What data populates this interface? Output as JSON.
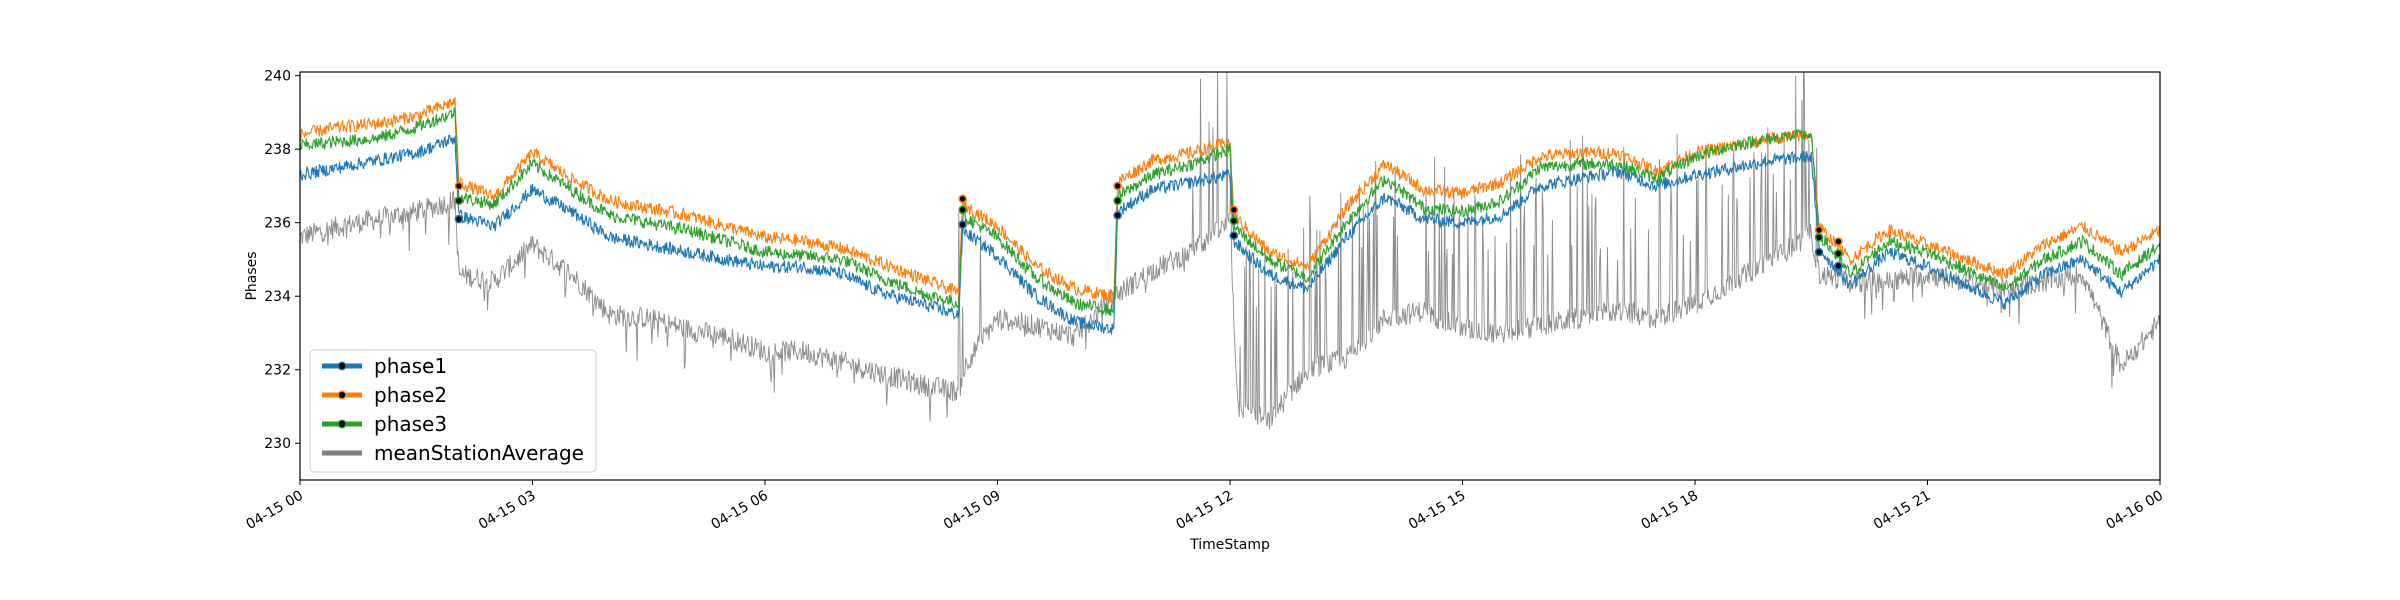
{
  "chart_data": {
    "type": "line",
    "title": "",
    "xlabel": "TimeStamp",
    "ylabel": "Phases",
    "ylim": [
      229,
      240.1
    ],
    "xlim_hours": [
      0,
      24
    ],
    "grid": false,
    "legend_position": "lower-left",
    "x_ticks": [
      {
        "hour": 0,
        "label": "04-15 00"
      },
      {
        "hour": 3,
        "label": "04-15 03"
      },
      {
        "hour": 6,
        "label": "04-15 06"
      },
      {
        "hour": 9,
        "label": "04-15 09"
      },
      {
        "hour": 12,
        "label": "04-15 12"
      },
      {
        "hour": 15,
        "label": "04-15 15"
      },
      {
        "hour": 18,
        "label": "04-15 18"
      },
      {
        "hour": 21,
        "label": "04-15 21"
      },
      {
        "hour": 24,
        "label": "04-16 00"
      }
    ],
    "y_ticks": [
      230,
      232,
      234,
      236,
      238,
      240
    ],
    "series": [
      {
        "name": "phase1",
        "color": "#1f77b4",
        "marker": true,
        "hours": [
          0,
          0.5,
          1.0,
          1.5,
          2.0,
          2.05,
          2.5,
          3.0,
          3.5,
          4.0,
          4.5,
          5.0,
          5.5,
          6.0,
          6.5,
          7.0,
          7.5,
          8.0,
          8.5,
          8.55,
          9.0,
          9.5,
          10.0,
          10.5,
          10.55,
          11.0,
          11.5,
          12.0,
          12.05,
          12.5,
          13.0,
          13.5,
          14.0,
          14.5,
          15.0,
          15.5,
          16.0,
          16.5,
          17.0,
          17.5,
          18.0,
          18.5,
          19.0,
          19.5,
          19.6,
          20.0,
          20.5,
          21.0,
          21.5,
          22.0,
          22.5,
          23.0,
          23.5,
          24.0
        ],
        "values": [
          237.3,
          237.5,
          237.7,
          237.9,
          238.3,
          236.2,
          235.9,
          236.9,
          236.3,
          235.6,
          235.4,
          235.2,
          235.0,
          234.8,
          234.8,
          234.6,
          234.1,
          233.8,
          233.5,
          235.8,
          235.1,
          234.0,
          233.3,
          233.1,
          236.3,
          236.9,
          237.1,
          237.3,
          235.5,
          234.6,
          234.2,
          235.6,
          236.7,
          236.1,
          236.0,
          236.2,
          237.0,
          237.2,
          237.4,
          237.0,
          237.3,
          237.5,
          237.7,
          237.8,
          235.3,
          234.3,
          235.2,
          234.8,
          234.3,
          233.8,
          234.6,
          235.0,
          234.1,
          235.0
        ]
      },
      {
        "name": "phase2",
        "color": "#ff7f0e",
        "marker": true,
        "hours": [
          0,
          0.5,
          1.0,
          1.5,
          2.0,
          2.05,
          2.5,
          3.0,
          3.5,
          4.0,
          4.5,
          5.0,
          5.5,
          6.0,
          6.5,
          7.0,
          7.5,
          8.0,
          8.5,
          8.55,
          9.0,
          9.5,
          10.0,
          10.5,
          10.55,
          11.0,
          11.5,
          12.0,
          12.05,
          12.5,
          13.0,
          13.5,
          14.0,
          14.5,
          15.0,
          15.5,
          16.0,
          16.5,
          17.0,
          17.5,
          18.0,
          18.5,
          19.0,
          19.5,
          19.6,
          20.0,
          20.5,
          21.0,
          21.5,
          22.0,
          22.5,
          23.0,
          23.5,
          24.0
        ],
        "values": [
          238.4,
          238.6,
          238.7,
          238.9,
          239.3,
          237.1,
          236.7,
          237.9,
          237.2,
          236.6,
          236.4,
          236.2,
          235.9,
          235.6,
          235.5,
          235.3,
          234.9,
          234.5,
          234.1,
          236.5,
          235.9,
          234.8,
          234.2,
          234.0,
          237.1,
          237.7,
          237.9,
          238.2,
          236.2,
          235.2,
          234.8,
          236.4,
          237.6,
          236.9,
          236.8,
          237.1,
          237.8,
          237.9,
          237.9,
          237.4,
          237.9,
          238.1,
          238.3,
          238.4,
          235.9,
          235.0,
          235.8,
          235.4,
          235.0,
          234.6,
          235.4,
          235.9,
          235.2,
          235.8
        ]
      },
      {
        "name": "phase3",
        "color": "#2ca02c",
        "marker": true,
        "hours": [
          0,
          0.5,
          1.0,
          1.5,
          2.0,
          2.05,
          2.5,
          3.0,
          3.5,
          4.0,
          4.5,
          5.0,
          5.5,
          6.0,
          6.5,
          7.0,
          7.5,
          8.0,
          8.5,
          8.55,
          9.0,
          9.5,
          10.0,
          10.5,
          10.55,
          11.0,
          11.5,
          12.0,
          12.05,
          12.5,
          13.0,
          13.5,
          14.0,
          14.5,
          15.0,
          15.5,
          16.0,
          16.5,
          17.0,
          17.5,
          18.0,
          18.5,
          19.0,
          19.5,
          19.6,
          20.0,
          20.5,
          21.0,
          21.5,
          22.0,
          22.5,
          23.0,
          23.5,
          24.0
        ],
        "values": [
          238.1,
          238.2,
          238.3,
          238.6,
          239.0,
          236.7,
          236.5,
          237.6,
          236.9,
          236.2,
          236.0,
          235.8,
          235.5,
          235.2,
          235.1,
          235.0,
          234.5,
          234.1,
          233.8,
          236.2,
          235.6,
          234.5,
          233.8,
          233.6,
          236.7,
          237.3,
          237.6,
          238.0,
          235.9,
          235.0,
          234.5,
          236.0,
          237.2,
          236.4,
          236.3,
          236.6,
          237.5,
          237.6,
          237.6,
          237.2,
          237.8,
          238.1,
          238.3,
          238.4,
          235.7,
          234.6,
          235.5,
          235.2,
          234.7,
          234.2,
          235.0,
          235.5,
          234.6,
          235.4
        ]
      },
      {
        "name": "meanStationAverage",
        "color": "#808080",
        "marker": false,
        "hours": [
          0,
          0.5,
          1.0,
          1.5,
          2.0,
          2.05,
          2.5,
          3.0,
          3.5,
          4.0,
          4.5,
          5.0,
          5.5,
          6.0,
          6.5,
          7.0,
          7.5,
          8.0,
          8.5,
          8.6,
          9.0,
          9.5,
          10.0,
          10.5,
          11.0,
          11.5,
          12.0,
          12.1,
          12.5,
          13.0,
          13.5,
          14.0,
          14.5,
          15.0,
          15.5,
          16.0,
          16.5,
          17.0,
          17.5,
          18.0,
          18.5,
          19.0,
          19.5,
          19.6,
          20.0,
          20.5,
          21.0,
          21.5,
          22.0,
          22.5,
          23.0,
          23.5,
          24.0
        ],
        "values": [
          235.6,
          235.9,
          236.1,
          236.3,
          236.6,
          234.6,
          234.4,
          235.4,
          234.6,
          233.5,
          233.4,
          233.1,
          232.9,
          232.5,
          232.5,
          232.2,
          231.9,
          231.6,
          231.4,
          232.2,
          233.4,
          233.2,
          232.9,
          234.0,
          234.7,
          235.2,
          236.0,
          231.0,
          230.6,
          232.0,
          232.3,
          233.4,
          233.6,
          233.1,
          233.0,
          233.2,
          233.4,
          233.6,
          233.4,
          233.8,
          234.4,
          235.0,
          235.7,
          234.6,
          234.4,
          234.4,
          234.6,
          234.4,
          234.2,
          234.4,
          234.6,
          232.1,
          233.3
        ]
      }
    ]
  }
}
